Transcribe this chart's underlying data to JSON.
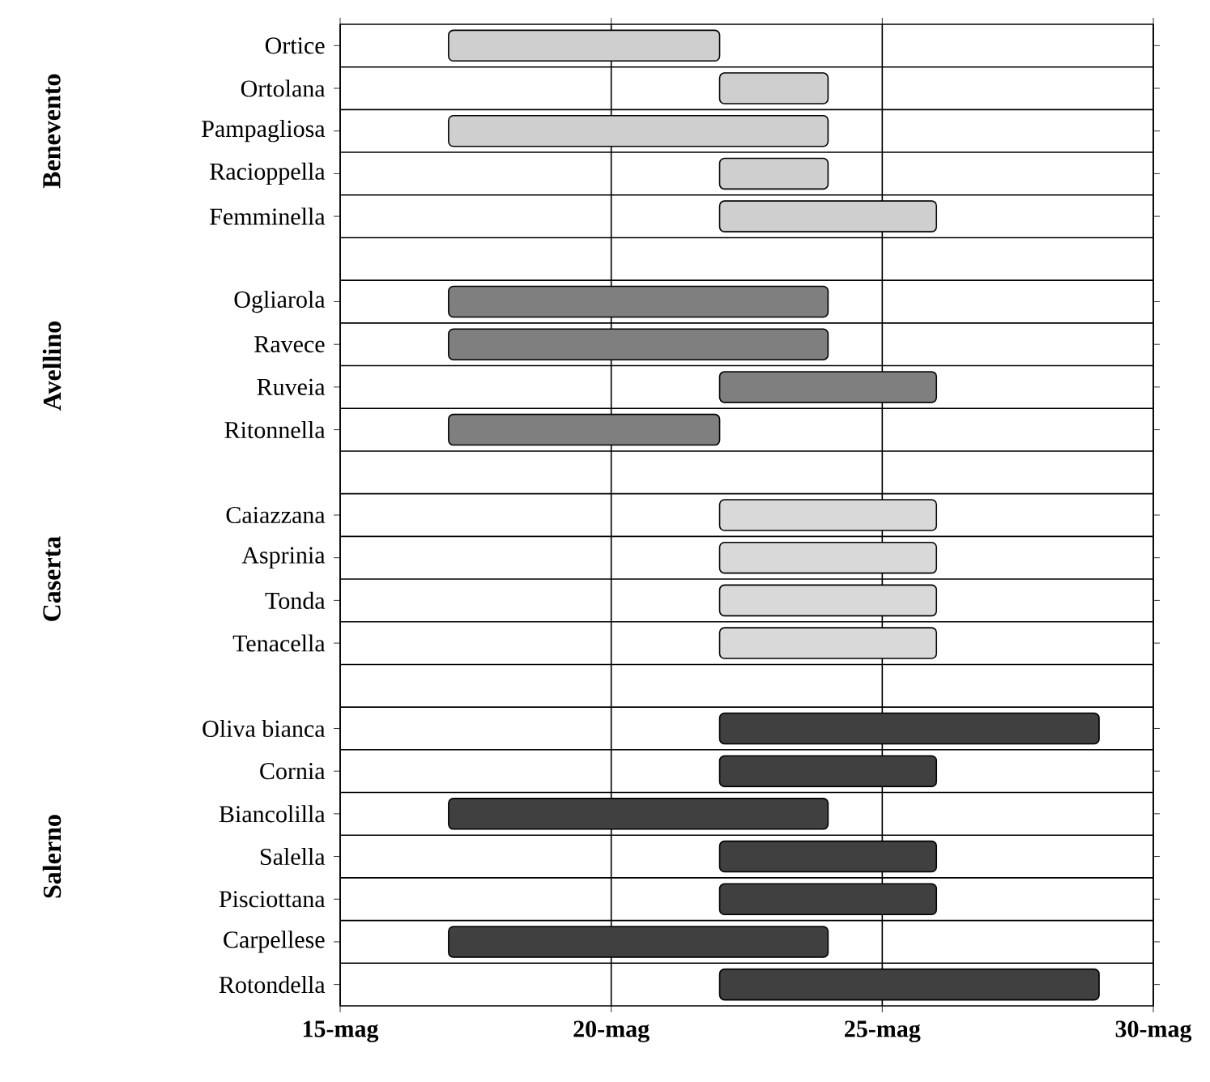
{
  "chart_data": {
    "type": "bar",
    "orientation": "horizontal",
    "grid": true,
    "categories": [
      "Ortice",
      "Ortolana",
      "Pampagliosa",
      "Racioppella",
      "Femminella",
      null,
      "Ogliarola",
      "Ravece",
      "Ruveia",
      "Ritonnella",
      null,
      "Caiazzana",
      "Asprinia",
      "Tonda",
      "Tenacella",
      null,
      "Oliva bianca",
      "Cornia",
      "Biancolilla",
      "Salella",
      "Pisciottana",
      "Carpellese",
      "Rotondella"
    ],
    "xlim": [
      15,
      30
    ],
    "xticks": [
      {
        "value": 15,
        "label": "15-mag"
      },
      {
        "value": 20,
        "label": "20-mag"
      },
      {
        "value": 25,
        "label": "25-mag"
      },
      {
        "value": 30,
        "label": "30-mag"
      }
    ],
    "annotations": [
      "Benevento",
      "Avellino",
      "Caserta",
      "Salerno"
    ],
    "series": [
      {
        "color": "#cfcfcf",
        "base": [
          17,
          22,
          17,
          22,
          22,
          null,
          null,
          null,
          null,
          null,
          null,
          null,
          null,
          null,
          null,
          null,
          null,
          null,
          null,
          null,
          null,
          null,
          null
        ],
        "values": [
          5,
          2,
          7,
          2,
          4,
          null,
          null,
          null,
          null,
          null,
          null,
          null,
          null,
          null,
          null,
          null,
          null,
          null,
          null,
          null,
          null,
          null,
          null
        ]
      },
      {
        "color": "#7f7f7f",
        "base": [
          null,
          null,
          null,
          null,
          null,
          null,
          17,
          17,
          22,
          17,
          null,
          null,
          null,
          null,
          null,
          null,
          null,
          null,
          null,
          null,
          null,
          null,
          null
        ],
        "values": [
          null,
          null,
          null,
          null,
          null,
          null,
          7,
          7,
          4,
          5,
          null,
          null,
          null,
          null,
          null,
          null,
          null,
          null,
          null,
          null,
          null,
          null,
          null
        ]
      },
      {
        "color": "#d9d9d9",
        "base": [
          null,
          null,
          null,
          null,
          null,
          null,
          null,
          null,
          null,
          null,
          null,
          22,
          22,
          22,
          22,
          null,
          null,
          null,
          null,
          null,
          null,
          null,
          null
        ],
        "values": [
          null,
          null,
          null,
          null,
          null,
          null,
          null,
          null,
          null,
          null,
          null,
          4,
          4,
          4,
          4,
          null,
          null,
          null,
          null,
          null,
          null,
          null,
          null
        ]
      },
      {
        "color": "#404040",
        "base": [
          null,
          null,
          null,
          null,
          null,
          null,
          null,
          null,
          null,
          null,
          null,
          null,
          null,
          null,
          null,
          null,
          22,
          22,
          17,
          22,
          22,
          17,
          22
        ],
        "values": [
          null,
          null,
          null,
          null,
          null,
          null,
          null,
          null,
          null,
          null,
          null,
          null,
          null,
          null,
          null,
          null,
          7,
          4,
          7,
          4,
          4,
          7,
          7
        ]
      }
    ]
  }
}
